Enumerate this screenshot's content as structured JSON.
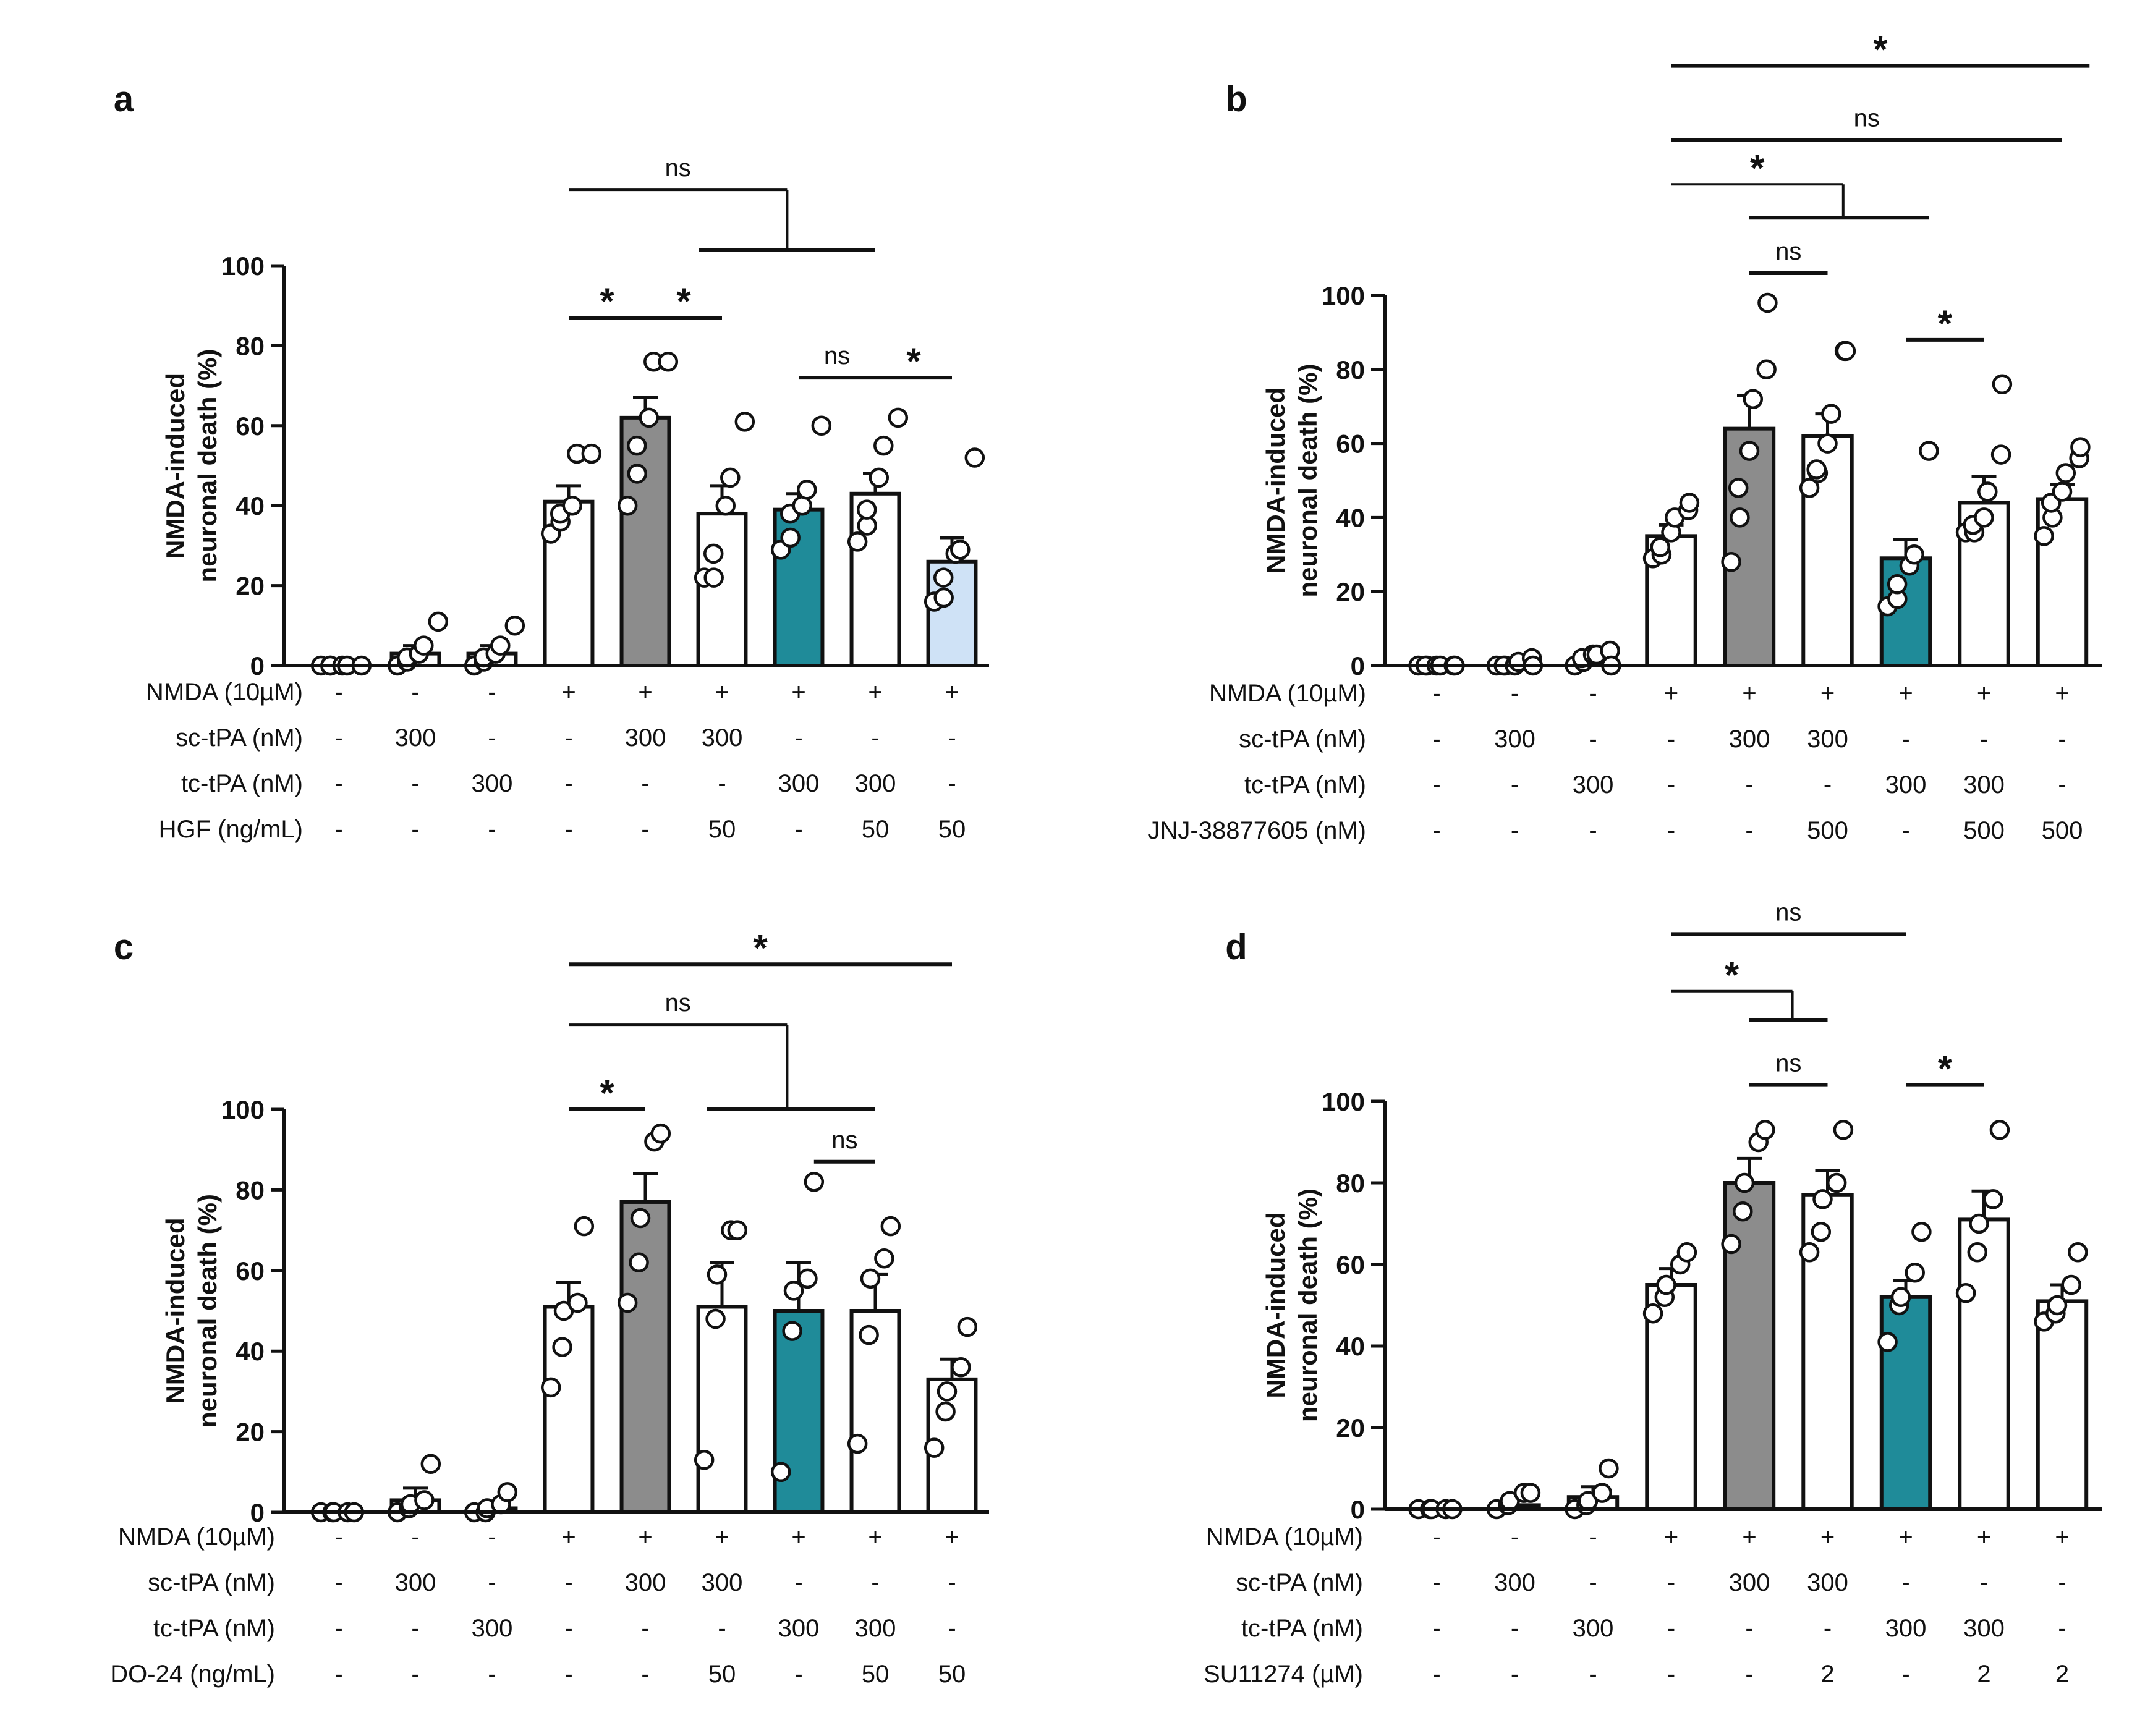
{
  "chart_data": [
    {
      "type": "bar",
      "panel": "a",
      "ylabel_line1": "NMDA-induced",
      "ylabel_line2": "neuronal death (%)",
      "ylim": [
        0,
        100
      ],
      "yticks": [
        "0",
        "20",
        "40",
        "60",
        "80",
        "100"
      ],
      "values": [
        0,
        3,
        3,
        41,
        62,
        38,
        39,
        43,
        26
      ],
      "errors": [
        0.6,
        2,
        2,
        4,
        5,
        7,
        4,
        5,
        6
      ],
      "colors": [
        "#ffffff",
        "#ffffff",
        "#ffffff",
        "#ffffff",
        "#8c8c8c",
        "#ffffff",
        "#1f8b99",
        "#ffffff",
        "#cfe2f6"
      ],
      "points": [
        [
          0,
          0,
          0,
          0,
          0,
          0
        ],
        [
          0,
          1,
          2,
          3,
          5,
          11
        ],
        [
          0,
          1,
          2,
          3,
          5,
          10
        ],
        [
          33,
          36,
          38,
          40,
          53,
          53
        ],
        [
          40,
          48,
          55,
          62,
          76,
          76
        ],
        [
          22,
          22,
          28,
          40,
          47,
          61
        ],
        [
          29,
          32,
          38,
          40,
          44,
          60
        ],
        [
          31,
          35,
          39,
          47,
          55,
          62
        ],
        [
          16,
          17,
          22,
          28,
          29,
          52
        ]
      ],
      "rows": [
        {
          "label": "NMDA (10µM)",
          "cells": [
            "-",
            "-",
            "-",
            "+",
            "+",
            "+",
            "+",
            "+",
            "+"
          ]
        },
        {
          "label": "sc-tPA (nM)",
          "cells": [
            "-",
            "300",
            "-",
            "-",
            "300",
            "300",
            "-",
            "-",
            "-"
          ]
        },
        {
          "label": "tc-tPA (nM)",
          "cells": [
            "-",
            "-",
            "300",
            "-",
            "-",
            "-",
            "300",
            "300",
            "-"
          ]
        },
        {
          "label": "HGF (ng/mL)",
          "cells": [
            "-",
            "-",
            "-",
            "-",
            "-",
            "50",
            "-",
            "50",
            "50"
          ]
        }
      ],
      "annotations": [
        {
          "type": "simple",
          "label": "*",
          "from": 3,
          "to": 4,
          "level": 87
        },
        {
          "type": "simple",
          "label": "*",
          "from": 4,
          "to": 5,
          "level": 87
        },
        {
          "type": "simple",
          "label": "ns",
          "from": 6,
          "to": 7,
          "level": 72
        },
        {
          "type": "simple",
          "label": "*",
          "from": 7,
          "to": 8,
          "level": 72
        },
        {
          "type": "bracket",
          "label": "ns",
          "from": 3,
          "stem": 5.85,
          "sub_from": 4.7,
          "sub_to": 7,
          "level": 119,
          "sub_level": 104
        }
      ]
    },
    {
      "type": "bar",
      "panel": "b",
      "ylabel_line1": "NMDA-induced",
      "ylabel_line2": "neuronal death (%)",
      "ylim": [
        0,
        100
      ],
      "yticks": [
        "0",
        "20",
        "40",
        "60",
        "80",
        "100"
      ],
      "values": [
        0,
        0,
        1,
        35,
        64,
        62,
        29,
        44,
        45
      ],
      "errors": [
        0.6,
        0.6,
        1,
        3,
        9,
        6,
        5,
        7,
        4
      ],
      "colors": [
        "#ffffff",
        "#ffffff",
        "#ffffff",
        "#ffffff",
        "#8c8c8c",
        "#ffffff",
        "#1f8b99",
        "#ffffff",
        "#ffffff"
      ],
      "points": [
        [
          0,
          0,
          0,
          0,
          0,
          0,
          0
        ],
        [
          0,
          0,
          0,
          0,
          1,
          2,
          0
        ],
        [
          0,
          1,
          2,
          3,
          3,
          4,
          0
        ],
        [
          29,
          30,
          32,
          36,
          40,
          42,
          44
        ],
        [
          28,
          40,
          48,
          58,
          72,
          80,
          98
        ],
        [
          48,
          52,
          53,
          60,
          68,
          85,
          85
        ],
        [
          16,
          18,
          22,
          27,
          30,
          58
        ],
        [
          36,
          36,
          38,
          40,
          47,
          57,
          76
        ],
        [
          35,
          40,
          44,
          47,
          52,
          56,
          59
        ]
      ],
      "rows": [
        {
          "label": "NMDA (10µM)",
          "cells": [
            "-",
            "-",
            "-",
            "+",
            "+",
            "+",
            "+",
            "+",
            "+"
          ]
        },
        {
          "label": "sc-tPA (nM)",
          "cells": [
            "-",
            "300",
            "-",
            "-",
            "300",
            "300",
            "-",
            "-",
            "-"
          ]
        },
        {
          "label": "tc-tPA (nM)",
          "cells": [
            "-",
            "-",
            "300",
            "-",
            "-",
            "-",
            "300",
            "300",
            "-"
          ]
        },
        {
          "label": "JNJ-38877605 (nM)",
          "cells": [
            "-",
            "-",
            "-",
            "-",
            "-",
            "500",
            "-",
            "500",
            "500"
          ]
        }
      ],
      "annotations": [
        {
          "type": "simple",
          "label": "ns",
          "from": 4,
          "to": 5,
          "level": 106
        },
        {
          "type": "simple",
          "label": "*",
          "from": 6,
          "to": 7,
          "level": 88
        },
        {
          "type": "bracket",
          "label": "*",
          "from": 3,
          "stem": 5.2,
          "sub_from": 4,
          "sub_to": 6.3,
          "level": 130,
          "sub_level": 121
        },
        {
          "type": "simple",
          "label": "ns",
          "from": 3,
          "to": 8,
          "level": 142
        },
        {
          "type": "simple",
          "label": "*",
          "from": 3,
          "to": 8.35,
          "level": 162
        }
      ]
    },
    {
      "type": "bar",
      "panel": "c",
      "ylabel_line1": "NMDA-induced",
      "ylabel_line2": "neuronal death (%)",
      "ylim": [
        0,
        100
      ],
      "yticks": [
        "0",
        "20",
        "40",
        "60",
        "80",
        "100"
      ],
      "values": [
        0,
        3,
        1,
        51,
        77,
        51,
        50,
        50,
        33
      ],
      "errors": [
        0.6,
        3,
        1,
        6,
        7,
        11,
        12,
        9,
        5
      ],
      "colors": [
        "#ffffff",
        "#ffffff",
        "#ffffff",
        "#ffffff",
        "#8c8c8c",
        "#ffffff",
        "#1f8b99",
        "#ffffff",
        "#ffffff"
      ],
      "points": [
        [
          0,
          0,
          0,
          0,
          0
        ],
        [
          0,
          1,
          2,
          3,
          12
        ],
        [
          0,
          0,
          1,
          2,
          5
        ],
        [
          31,
          41,
          50,
          52,
          71
        ],
        [
          52,
          62,
          73,
          92,
          94
        ],
        [
          13,
          48,
          59,
          70,
          70
        ],
        [
          10,
          45,
          55,
          58,
          82
        ],
        [
          17,
          44,
          58,
          63,
          71
        ],
        [
          16,
          25,
          30,
          36,
          46
        ]
      ],
      "rows": [
        {
          "label": "NMDA (10µM)",
          "cells": [
            "-",
            "-",
            "-",
            "+",
            "+",
            "+",
            "+",
            "+",
            "+"
          ]
        },
        {
          "label": "sc-tPA (nM)",
          "cells": [
            "-",
            "300",
            "-",
            "-",
            "300",
            "300",
            "-",
            "-",
            "-"
          ]
        },
        {
          "label": "tc-tPA (nM)",
          "cells": [
            "-",
            "-",
            "300",
            "-",
            "-",
            "-",
            "300",
            "300",
            "-"
          ]
        },
        {
          "label": "DO-24 (ng/mL)",
          "cells": [
            "-",
            "-",
            "-",
            "-",
            "-",
            "50",
            "-",
            "50",
            "50"
          ]
        }
      ],
      "annotations": [
        {
          "type": "simple",
          "label": "*",
          "from": 3,
          "to": 4,
          "level": 100
        },
        {
          "type": "simple",
          "label": "ns",
          "from": 6.2,
          "to": 7,
          "level": 87
        },
        {
          "type": "bracket",
          "label": "ns",
          "from": 3,
          "stem": 5.85,
          "sub_from": 4.8,
          "sub_to": 7,
          "level": 121,
          "sub_level": 100
        },
        {
          "type": "simple",
          "label": "*",
          "from": 3,
          "to": 8,
          "level": 136
        }
      ]
    },
    {
      "type": "bar",
      "panel": "d",
      "ylabel_line1": "NMDA-induced",
      "ylabel_line2": "neuronal death (%)",
      "ylim": [
        0,
        100
      ],
      "yticks": [
        "0",
        "20",
        "40",
        "60",
        "80",
        "100"
      ],
      "values": [
        0,
        1,
        3,
        55,
        80,
        77,
        52,
        71,
        51
      ],
      "errors": [
        0.6,
        1.5,
        2.5,
        4,
        6,
        6,
        4,
        7,
        4
      ],
      "colors": [
        "#ffffff",
        "#ffffff",
        "#ffffff",
        "#ffffff",
        "#8c8c8c",
        "#ffffff",
        "#1f8b99",
        "#ffffff",
        "#ffffff"
      ],
      "points": [
        [
          0,
          0,
          0,
          0,
          0
        ],
        [
          0,
          1,
          2,
          4,
          4
        ],
        [
          0,
          1,
          2,
          4,
          10
        ],
        [
          48,
          52,
          55,
          60,
          63
        ],
        [
          65,
          73,
          80,
          90,
          93
        ],
        [
          63,
          68,
          76,
          80,
          93
        ],
        [
          41,
          50,
          52,
          58,
          68
        ],
        [
          53,
          63,
          70,
          76,
          93
        ],
        [
          46,
          48,
          50,
          55,
          63
        ]
      ],
      "rows": [
        {
          "label": "NMDA (10µM)",
          "cells": [
            "-",
            "-",
            "-",
            "+",
            "+",
            "+",
            "+",
            "+",
            "+"
          ]
        },
        {
          "label": "sc-tPA (nM)",
          "cells": [
            "-",
            "300",
            "-",
            "-",
            "300",
            "300",
            "-",
            "-",
            "-"
          ]
        },
        {
          "label": "tc-tPA (nM)",
          "cells": [
            "-",
            "-",
            "300",
            "-",
            "-",
            "-",
            "300",
            "300",
            "-"
          ]
        },
        {
          "label": "SU11274 (µM)",
          "cells": [
            "-",
            "-",
            "-",
            "-",
            "-",
            "2",
            "-",
            "2",
            "2"
          ]
        }
      ],
      "annotations": [
        {
          "type": "simple",
          "label": "ns",
          "from": 4,
          "to": 5,
          "level": 104
        },
        {
          "type": "simple",
          "label": "*",
          "from": 6,
          "to": 7,
          "level": 104
        },
        {
          "type": "bracket",
          "label": "*",
          "from": 3,
          "stem": 4.55,
          "sub_from": 4,
          "sub_to": 5,
          "level": 127,
          "sub_level": 120
        },
        {
          "type": "simple",
          "label": "ns",
          "from": 3,
          "to": 6,
          "level": 141
        }
      ]
    }
  ]
}
